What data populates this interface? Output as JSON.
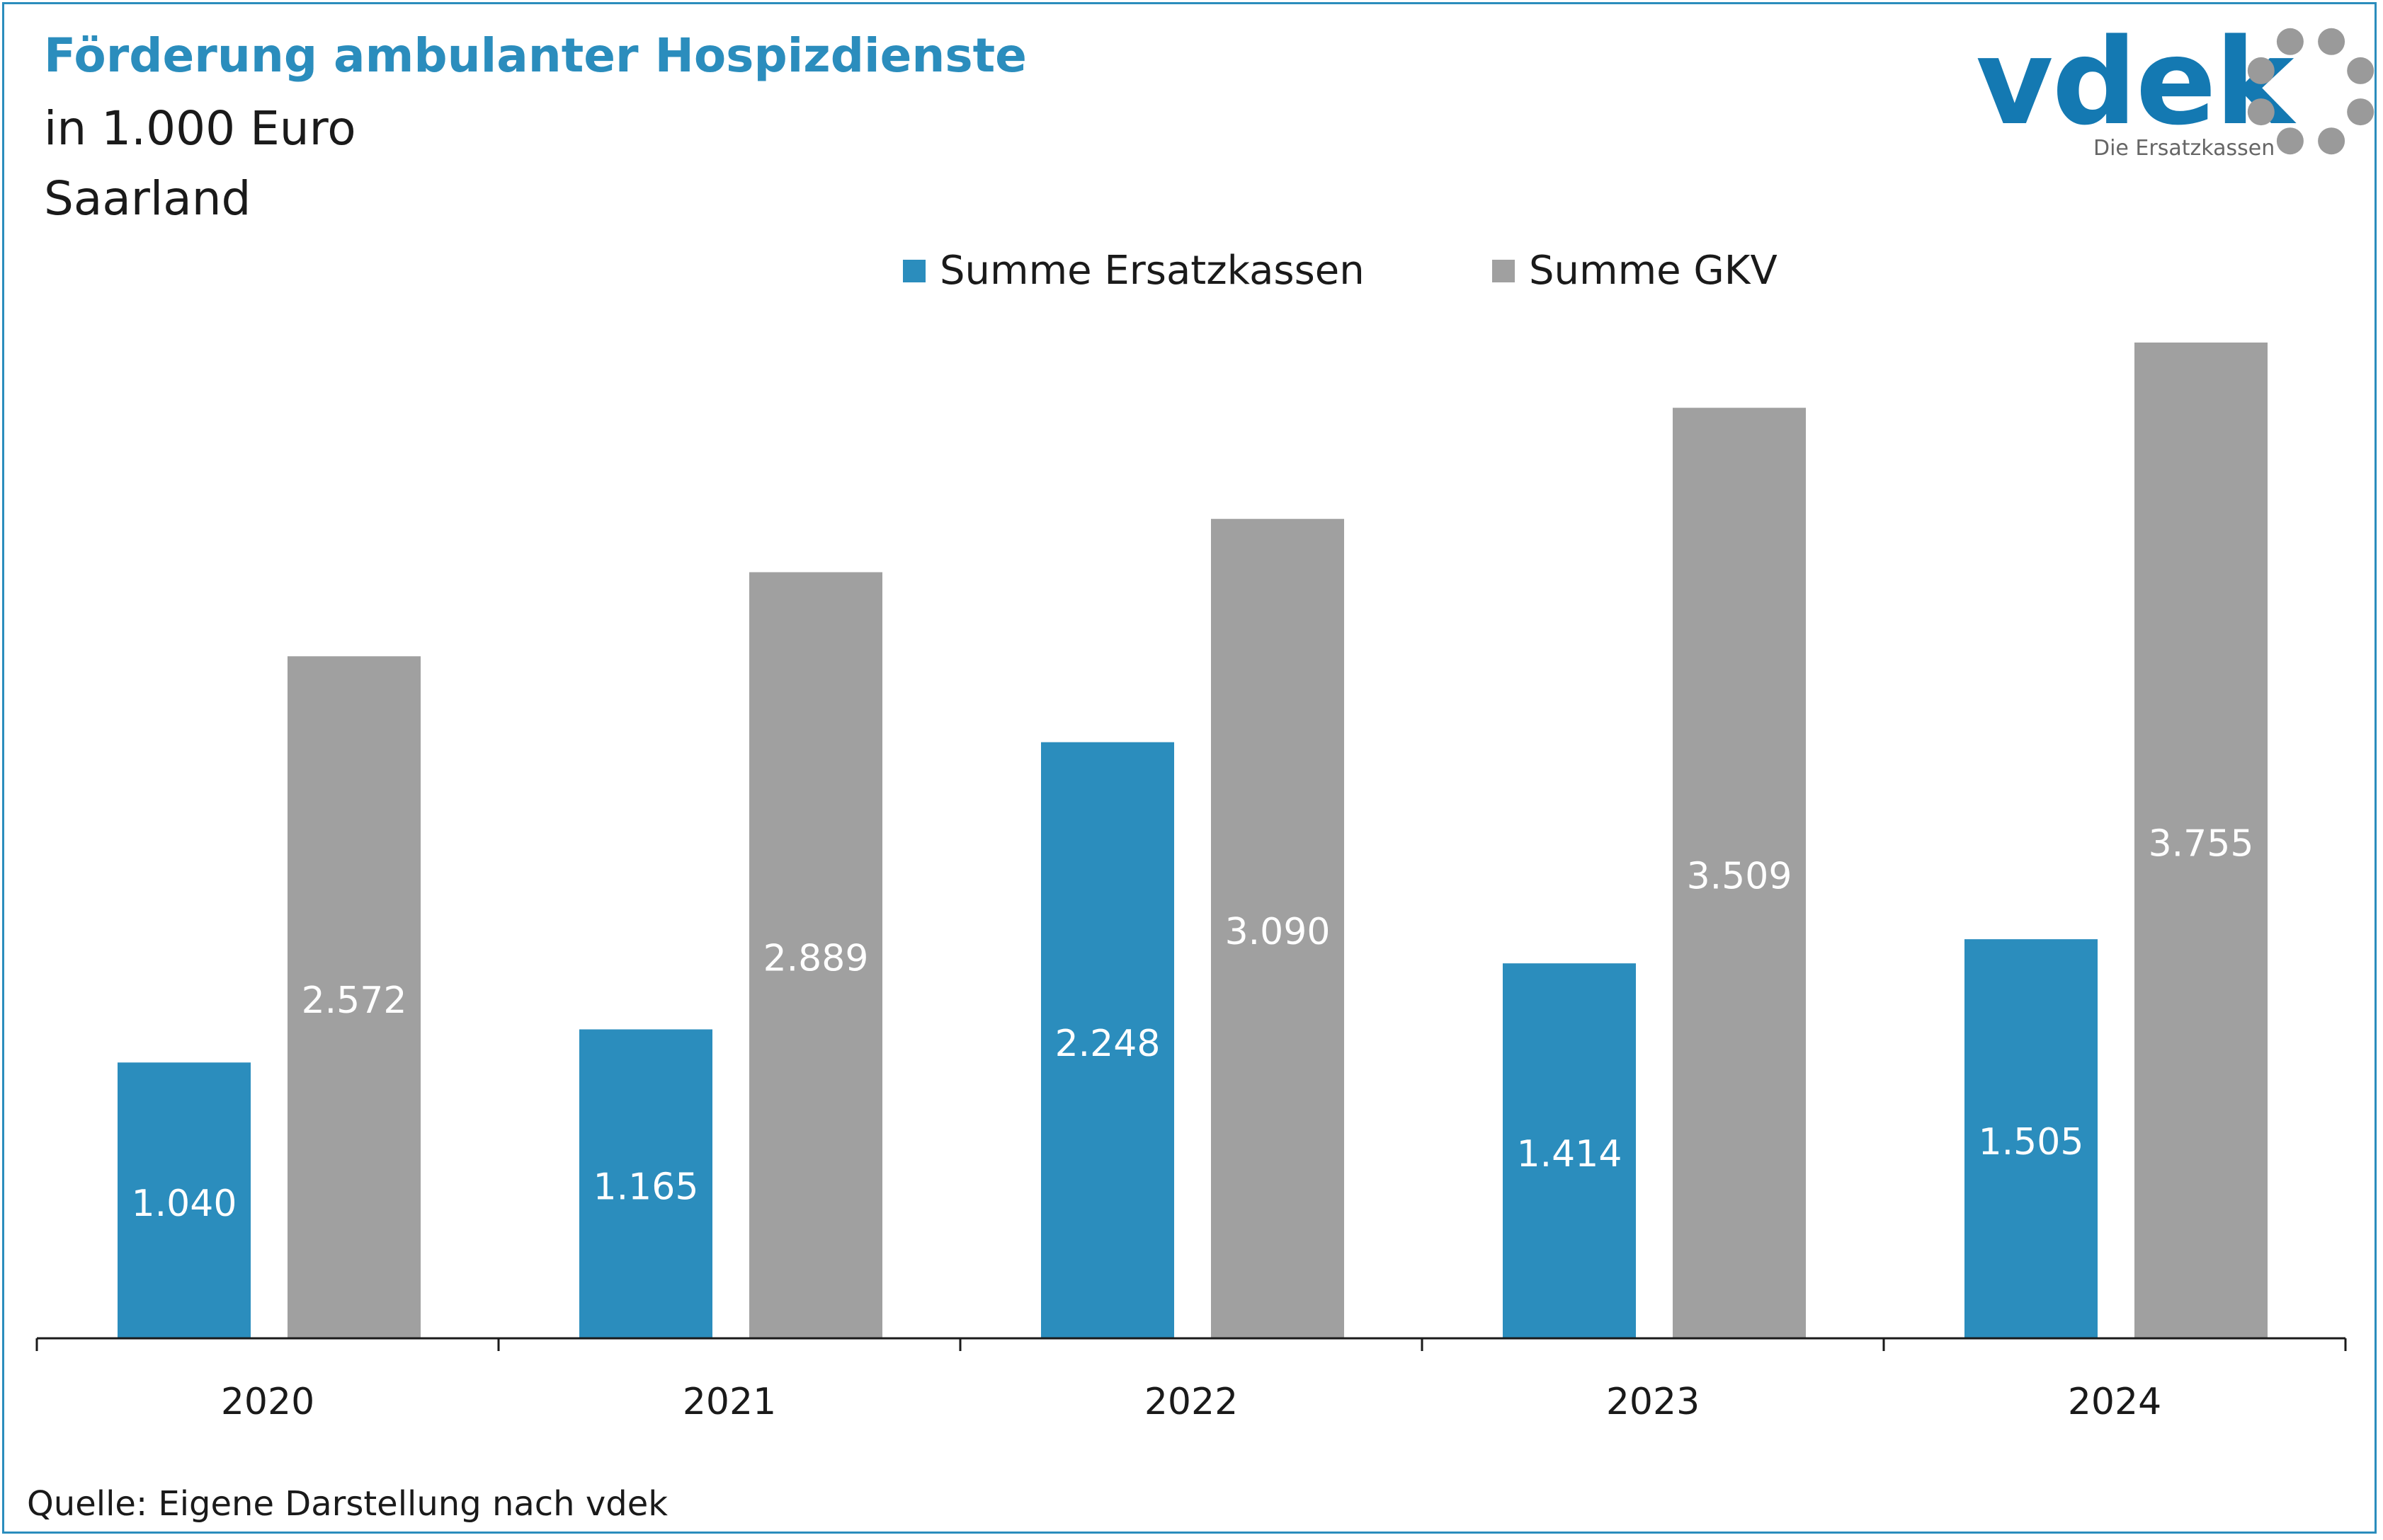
{
  "header": {
    "title": "Förderung ambulanter Hospizdienste",
    "subtitle_unit": "in 1.000 Euro",
    "subtitle_region": "Saarland"
  },
  "logo": {
    "wordmark": "vdek",
    "tagline": "Die Ersatzkassen"
  },
  "legend": [
    {
      "label": "Summe Ersatzkassen",
      "color": "#2b8dbd"
    },
    {
      "label": "Summe GKV",
      "color": "#a0a0a0"
    }
  ],
  "source": "Quelle: Eigene Darstellung nach vdek",
  "chart_data": {
    "type": "bar",
    "categories": [
      "2020",
      "2021",
      "2022",
      "2023",
      "2024"
    ],
    "series": [
      {
        "name": "Summe Ersatzkassen",
        "color": "#2b8dbd",
        "values": [
          1040,
          1165,
          2248,
          1414,
          1505
        ],
        "labels": [
          "1.040",
          "1.165",
          "2.248",
          "1.414",
          "1.505"
        ]
      },
      {
        "name": "Summe GKV",
        "color": "#a0a0a0",
        "values": [
          2572,
          2889,
          3090,
          3509,
          3755
        ],
        "labels": [
          "2.572",
          "2.889",
          "3.090",
          "3.509",
          "3.755"
        ]
      }
    ],
    "ylim": [
      0,
      3755
    ],
    "grid": false,
    "legend_position": "top"
  }
}
